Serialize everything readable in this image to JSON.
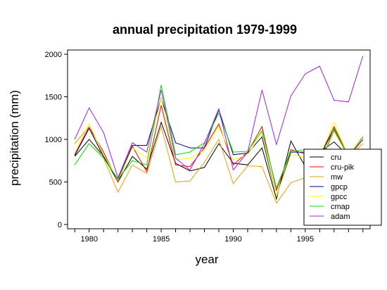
{
  "chart_data": {
    "type": "line",
    "title": "annual precipitation 1979-1999",
    "xlabel": "year",
    "ylabel": "precipitation (mm)",
    "xlim": [
      1978.5,
      1999.5
    ],
    "ylim": [
      -50,
      2050
    ],
    "x_ticks": [
      1980,
      1985,
      1990,
      1995
    ],
    "y_ticks": [
      0,
      500,
      1000,
      1500,
      2000
    ],
    "grid": false,
    "legend_position": "bottom-right",
    "x": [
      1979,
      1980,
      1981,
      1982,
      1983,
      1984,
      1985,
      1986,
      1987,
      1988,
      1989,
      1990,
      1991,
      1992,
      1993,
      1994,
      1995,
      1996,
      1997,
      1998,
      1999
    ],
    "series": [
      {
        "name": "cru",
        "color": "#000000",
        "values": [
          800,
          1000,
          800,
          500,
          800,
          650,
          1200,
          720,
          630,
          670,
          950,
          720,
          700,
          900,
          300,
          980,
          680,
          850,
          970,
          800,
          1000
        ]
      },
      {
        "name": "cru-pik",
        "color": "#ff0000",
        "values": [
          820,
          1150,
          850,
          500,
          920,
          620,
          1400,
          700,
          680,
          900,
          1180,
          700,
          850,
          1150,
          400,
          880,
          830,
          800,
          1150,
          800,
          1000
        ]
      },
      {
        "name": "mw",
        "color": "#e6a000",
        "values": [
          950,
          1150,
          780,
          380,
          700,
          600,
          1150,
          500,
          510,
          730,
          1000,
          480,
          690,
          680,
          250,
          490,
          550,
          700,
          1100,
          800,
          950
        ]
      },
      {
        "name": "gpcp",
        "color": "#000080",
        "values": [
          810,
          1130,
          800,
          530,
          930,
          930,
          1480,
          960,
          900,
          900,
          1350,
          820,
          840,
          1030,
          330,
          850,
          850,
          800,
          1120,
          800,
          1030
        ]
      },
      {
        "name": "gpcc",
        "color": "#ffff00",
        "values": [
          850,
          1180,
          820,
          520,
          900,
          780,
          1480,
          760,
          780,
          870,
          1150,
          760,
          820,
          1080,
          330,
          820,
          790,
          800,
          1200,
          800,
          1030
        ]
      },
      {
        "name": "cmap",
        "color": "#00e000",
        "values": [
          700,
          950,
          780,
          530,
          750,
          700,
          1640,
          820,
          850,
          960,
          1310,
          850,
          860,
          1100,
          430,
          860,
          880,
          700,
          1130,
          800,
          1030
        ]
      },
      {
        "name": "adam",
        "color": "#a020f0",
        "values": [
          1000,
          1370,
          1080,
          550,
          960,
          850,
          1580,
          780,
          640,
          950,
          1360,
          640,
          850,
          1580,
          940,
          1510,
          1770,
          1860,
          1460,
          1440,
          1980
        ]
      }
    ]
  }
}
